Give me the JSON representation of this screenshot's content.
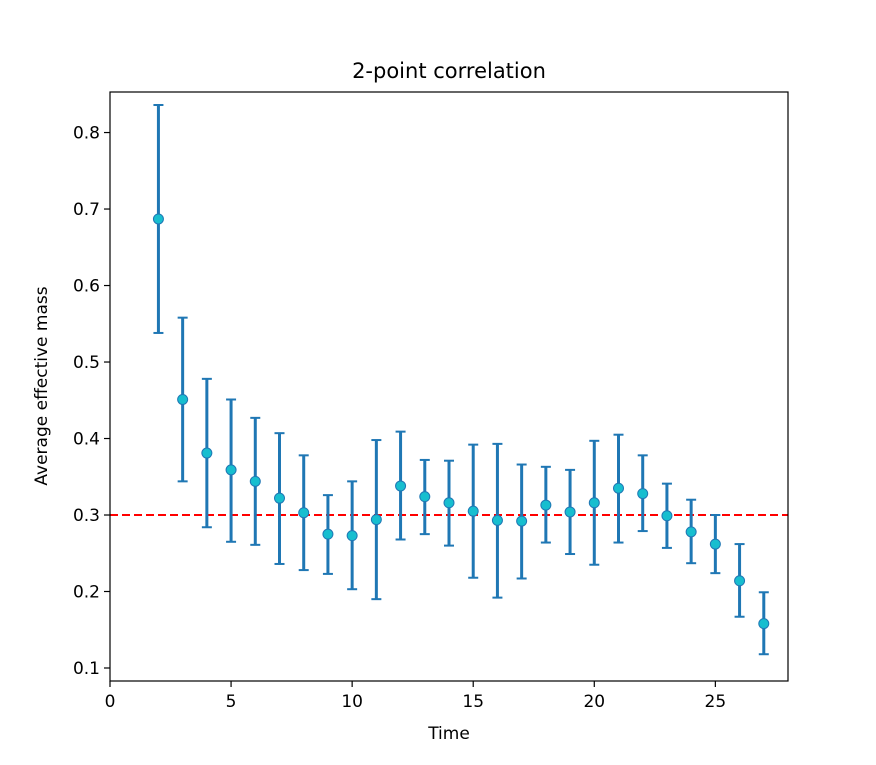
{
  "chart_data": {
    "type": "scatter",
    "title": "2-point correlation",
    "xlabel": "Time",
    "ylabel": "Average effective mass",
    "xlim": [
      0,
      28
    ],
    "ylim": [
      0.083,
      0.853
    ],
    "xticks": [
      0,
      5,
      10,
      15,
      20,
      25
    ],
    "xtick_labels": [
      "0",
      "5",
      "10",
      "15",
      "20",
      "25"
    ],
    "yticks": [
      0.1,
      0.2,
      0.3,
      0.4,
      0.5,
      0.6,
      0.7,
      0.8
    ],
    "ytick_labels": [
      "0.1",
      "0.2",
      "0.3",
      "0.4",
      "0.5",
      "0.6",
      "0.7",
      "0.8"
    ],
    "grid": false,
    "reference_line": {
      "y": 0.3,
      "color": "#ff0000",
      "style": "dashed"
    },
    "error_color": "#1f77b4",
    "marker_color": "#17becf",
    "series": [
      {
        "x": [
          2,
          3,
          4,
          5,
          6,
          7,
          8,
          9,
          10,
          11,
          12,
          13,
          14,
          15,
          16,
          17,
          18,
          19,
          20,
          21,
          22,
          23,
          24,
          25,
          26,
          27
        ],
        "y": [
          0.687,
          0.451,
          0.381,
          0.359,
          0.344,
          0.322,
          0.303,
          0.275,
          0.273,
          0.294,
          0.338,
          0.324,
          0.316,
          0.305,
          0.293,
          0.292,
          0.313,
          0.304,
          0.316,
          0.335,
          0.328,
          0.299,
          0.278,
          0.262,
          0.214,
          0.158
        ],
        "err_low": [
          0.538,
          0.344,
          0.284,
          0.265,
          0.261,
          0.236,
          0.228,
          0.223,
          0.203,
          0.19,
          0.268,
          0.275,
          0.26,
          0.218,
          0.192,
          0.217,
          0.264,
          0.249,
          0.235,
          0.264,
          0.279,
          0.257,
          0.237,
          0.224,
          0.167,
          0.118
        ],
        "err_high": [
          0.836,
          0.558,
          0.478,
          0.451,
          0.427,
          0.407,
          0.378,
          0.326,
          0.344,
          0.398,
          0.409,
          0.372,
          0.371,
          0.392,
          0.393,
          0.366,
          0.363,
          0.359,
          0.397,
          0.405,
          0.378,
          0.341,
          0.32,
          0.3,
          0.262,
          0.199
        ]
      }
    ]
  }
}
